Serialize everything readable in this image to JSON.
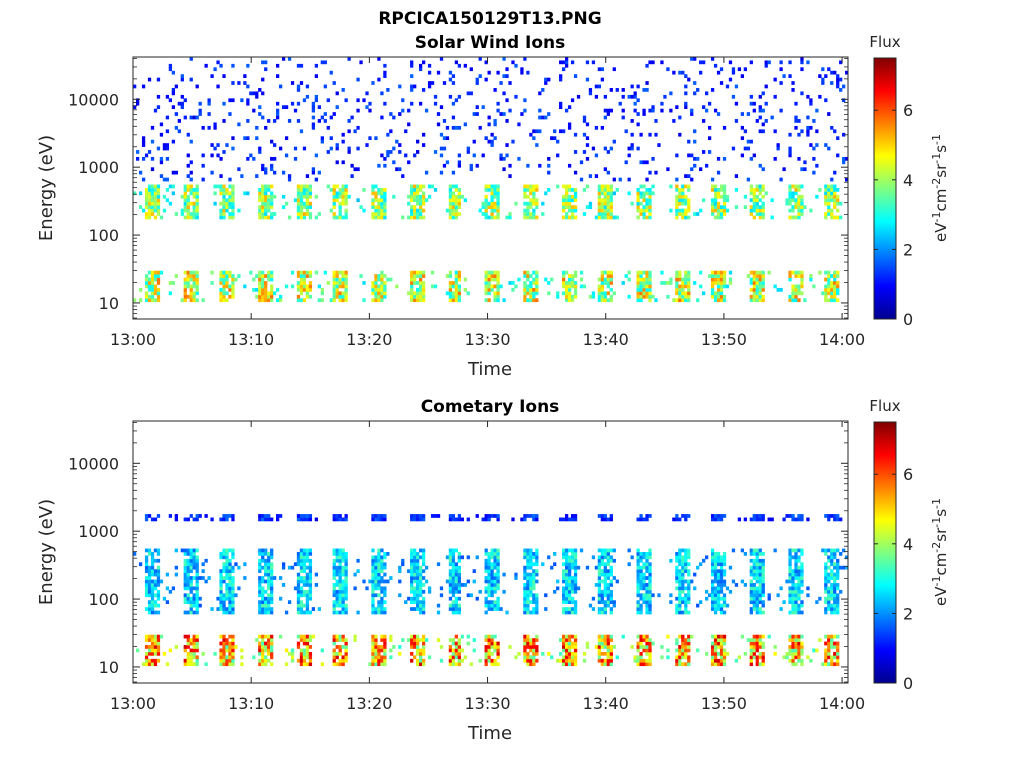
{
  "figure_title": "RPCICA150129T13.PNG",
  "colors": {
    "colormap": "jet",
    "background": "#ffffff",
    "axis": "#262626"
  },
  "chart_data": [
    {
      "type": "heatmap",
      "title": "Solar Wind Ions",
      "xlabel": "Time",
      "ylabel": "Energy (eV)",
      "x_ticks": [
        "13:00",
        "13:10",
        "13:20",
        "13:30",
        "13:40",
        "13:50",
        "14:00"
      ],
      "x_range_minutes": [
        0,
        60.5
      ],
      "y_scale": "log",
      "y_range": [
        5.8,
        42000
      ],
      "y_ticks": [
        10,
        100,
        1000,
        10000
      ],
      "y_tick_labels": [
        "10",
        "100",
        "1000",
        "10000"
      ],
      "colorbar": {
        "label": "Flux",
        "units": "eV-1cm-2sr-1s-1",
        "range": [
          0,
          7.5
        ],
        "ticks": [
          0,
          2,
          4,
          6
        ]
      },
      "pulse_period_minutes": 3.2,
      "pulse_start_minutes": 1.0,
      "bands": [
        {
          "energy_eV": [
            11,
            29
          ],
          "flux": 5.0
        },
        {
          "energy_eV": [
            170,
            560
          ],
          "flux": 4.6
        },
        {
          "energy_eV": [
            600,
            40000
          ],
          "flux": 1.2
        }
      ]
    },
    {
      "type": "heatmap",
      "title": "Cometary Ions",
      "xlabel": "Time",
      "ylabel": "Energy (eV)",
      "x_ticks": [
        "13:00",
        "13:10",
        "13:20",
        "13:30",
        "13:40",
        "13:50",
        "14:00"
      ],
      "x_range_minutes": [
        0,
        60.5
      ],
      "y_scale": "log",
      "y_range": [
        5.8,
        42000
      ],
      "y_ticks": [
        10,
        100,
        1000,
        10000
      ],
      "y_tick_labels": [
        "10",
        "100",
        "1000",
        "10000"
      ],
      "colorbar": {
        "label": "Flux",
        "units": "eV-1cm-2sr-1s-1",
        "range": [
          0,
          7.5
        ],
        "ticks": [
          0,
          2,
          4,
          6
        ]
      },
      "pulse_period_minutes": 3.2,
      "pulse_start_minutes": 1.0,
      "bands": [
        {
          "energy_eV": [
            11,
            29
          ],
          "flux": 6.0
        },
        {
          "energy_eV": [
            60,
            560
          ],
          "flux": 3.0
        },
        {
          "energy_eV": [
            1400,
            1800
          ],
          "flux": 1.5
        }
      ]
    }
  ]
}
